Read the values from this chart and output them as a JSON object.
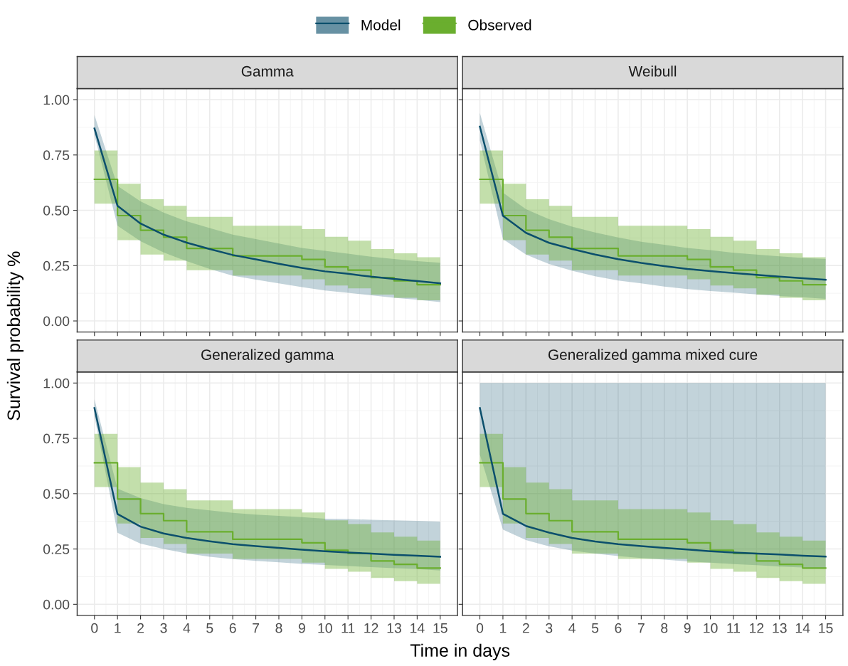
{
  "chart_data": [
    {
      "type": "line",
      "title": "Gamma",
      "ylabel": "Survival probability %",
      "legend": "top",
      "grid": true,
      "tick_labels": "y",
      "xlim": [
        -0.75,
        15.75
      ],
      "ylim": [
        -0.05,
        1.05
      ],
      "xticks": [
        0,
        1,
        2,
        3,
        4,
        5,
        6,
        7,
        8,
        9,
        10,
        11,
        12,
        13,
        14,
        15
      ],
      "yticks": [
        {
          "value": 0,
          "label": "0.00"
        },
        {
          "value": 0.25,
          "label": "0.25"
        },
        {
          "value": 0.5,
          "label": "0.50"
        },
        {
          "value": 0.75,
          "label": "0.75"
        },
        {
          "value": 1,
          "label": "1.00"
        }
      ],
      "x": [
        0,
        1,
        2,
        3,
        4,
        5,
        6,
        7,
        8,
        9,
        10,
        11,
        12,
        13,
        14,
        15
      ],
      "series": [
        {
          "name": "Model",
          "color": "#0b4f6c",
          "values": [
            0.87,
            0.52,
            0.44,
            0.39,
            0.354,
            0.325,
            0.298,
            0.278,
            0.258,
            0.24,
            0.224,
            0.213,
            0.2,
            0.19,
            0.18,
            0.17
          ],
          "lower": [
            0.84,
            0.43,
            0.36,
            0.31,
            0.27,
            0.235,
            0.204,
            0.187,
            0.17,
            0.153,
            0.138,
            0.127,
            0.116,
            0.105,
            0.096,
            0.085
          ],
          "upper": [
            0.93,
            0.61,
            0.54,
            0.49,
            0.45,
            0.42,
            0.39,
            0.37,
            0.35,
            0.33,
            0.317,
            0.304,
            0.29,
            0.28,
            0.27,
            0.263
          ]
        },
        {
          "name": "Observed",
          "type": "step",
          "color": "#6aae2e",
          "values": [
            0.64,
            0.476,
            0.41,
            0.378,
            0.328,
            0.328,
            0.294,
            0.294,
            0.294,
            0.278,
            0.244,
            0.23,
            0.196,
            0.181,
            0.164,
            0.164
          ],
          "lower": [
            0.53,
            0.365,
            0.3,
            0.273,
            0.229,
            0.229,
            0.205,
            0.205,
            0.205,
            0.188,
            0.16,
            0.147,
            0.119,
            0.105,
            0.093,
            0.093
          ],
          "upper": [
            0.77,
            0.62,
            0.55,
            0.52,
            0.47,
            0.47,
            0.43,
            0.43,
            0.43,
            0.415,
            0.38,
            0.363,
            0.325,
            0.306,
            0.288,
            0.288
          ]
        }
      ]
    },
    {
      "type": "line",
      "title": "Weibull",
      "grid": true,
      "tick_labels": false,
      "xlim": [
        -0.75,
        15.75
      ],
      "ylim": [
        -0.05,
        1.05
      ],
      "xticks": [
        0,
        1,
        2,
        3,
        4,
        5,
        6,
        7,
        8,
        9,
        10,
        11,
        12,
        13,
        14,
        15
      ],
      "yticks": [
        0,
        0.25,
        0.5,
        0.75,
        1
      ],
      "x": [
        0,
        1,
        2,
        3,
        4,
        5,
        6,
        7,
        8,
        9,
        10,
        11,
        12,
        13,
        14,
        15
      ],
      "series": [
        {
          "color": "#0b4f6c",
          "values": [
            0.878,
            0.475,
            0.398,
            0.353,
            0.325,
            0.3,
            0.279,
            0.262,
            0.248,
            0.235,
            0.225,
            0.216,
            0.208,
            0.2,
            0.193,
            0.186
          ],
          "lower": [
            0.815,
            0.37,
            0.3,
            0.257,
            0.227,
            0.202,
            0.183,
            0.17,
            0.155,
            0.144,
            0.135,
            0.128,
            0.12,
            0.113,
            0.107,
            0.1
          ],
          "upper": [
            0.94,
            0.58,
            0.505,
            0.46,
            0.426,
            0.4,
            0.377,
            0.358,
            0.344,
            0.33,
            0.32,
            0.308,
            0.3,
            0.292,
            0.285,
            0.28
          ]
        },
        {
          "type": "step",
          "color": "#6aae2e",
          "values": [
            0.64,
            0.476,
            0.41,
            0.378,
            0.328,
            0.328,
            0.294,
            0.294,
            0.294,
            0.278,
            0.244,
            0.23,
            0.196,
            0.181,
            0.164,
            0.164
          ],
          "lower": [
            0.53,
            0.365,
            0.3,
            0.273,
            0.229,
            0.229,
            0.205,
            0.205,
            0.205,
            0.188,
            0.16,
            0.147,
            0.119,
            0.105,
            0.093,
            0.093
          ],
          "upper": [
            0.77,
            0.62,
            0.55,
            0.52,
            0.47,
            0.47,
            0.43,
            0.43,
            0.43,
            0.415,
            0.38,
            0.363,
            0.325,
            0.306,
            0.288,
            0.288
          ]
        }
      ]
    },
    {
      "type": "line",
      "title": "Generalized gamma",
      "xlabel": "Time in days",
      "grid": true,
      "xlim": [
        -0.75,
        15.75
      ],
      "ylim": [
        -0.05,
        1.05
      ],
      "xticks": [
        0,
        1,
        2,
        3,
        4,
        5,
        6,
        7,
        8,
        9,
        10,
        11,
        12,
        13,
        14,
        15
      ],
      "yticks": [
        {
          "value": 0,
          "label": "0.00"
        },
        {
          "value": 0.25,
          "label": "0.25"
        },
        {
          "value": 0.5,
          "label": "0.50"
        },
        {
          "value": 0.75,
          "label": "0.75"
        },
        {
          "value": 1,
          "label": "1.00"
        }
      ],
      "x": [
        0,
        1,
        2,
        3,
        4,
        5,
        6,
        7,
        8,
        9,
        10,
        11,
        12,
        13,
        14,
        15
      ],
      "series": [
        {
          "color": "#0b4f6c",
          "values": [
            0.887,
            0.408,
            0.351,
            0.32,
            0.3,
            0.285,
            0.272,
            0.263,
            0.255,
            0.247,
            0.24,
            0.234,
            0.229,
            0.224,
            0.22,
            0.215
          ],
          "lower": [
            0.85,
            0.323,
            0.274,
            0.25,
            0.23,
            0.215,
            0.204,
            0.196,
            0.19,
            0.183,
            0.178,
            0.173,
            0.168,
            0.163,
            0.159,
            0.153
          ],
          "upper": [
            0.926,
            0.523,
            0.48,
            0.453,
            0.436,
            0.425,
            0.413,
            0.405,
            0.4,
            0.394,
            0.387,
            0.385,
            0.382,
            0.38,
            0.377,
            0.374
          ]
        },
        {
          "type": "step",
          "color": "#6aae2e",
          "values": [
            0.64,
            0.476,
            0.41,
            0.378,
            0.328,
            0.328,
            0.294,
            0.294,
            0.294,
            0.278,
            0.244,
            0.23,
            0.196,
            0.181,
            0.164,
            0.164
          ],
          "lower": [
            0.53,
            0.365,
            0.3,
            0.273,
            0.229,
            0.229,
            0.205,
            0.205,
            0.205,
            0.188,
            0.16,
            0.147,
            0.119,
            0.105,
            0.093,
            0.093
          ],
          "upper": [
            0.77,
            0.62,
            0.55,
            0.52,
            0.47,
            0.47,
            0.43,
            0.43,
            0.43,
            0.415,
            0.38,
            0.363,
            0.325,
            0.306,
            0.288,
            0.288
          ]
        }
      ]
    },
    {
      "type": "line",
      "title": "Generalized gamma mixed cure",
      "grid": true,
      "tick_labels": "x",
      "xlim": [
        -0.75,
        15.75
      ],
      "ylim": [
        -0.05,
        1.05
      ],
      "xticks": [
        0,
        1,
        2,
        3,
        4,
        5,
        6,
        7,
        8,
        9,
        10,
        11,
        12,
        13,
        14,
        15
      ],
      "yticks": [
        0,
        0.25,
        0.5,
        0.75,
        1
      ],
      "x": [
        0,
        1,
        2,
        3,
        4,
        5,
        6,
        7,
        8,
        9,
        10,
        11,
        12,
        13,
        14,
        15
      ],
      "series": [
        {
          "color": "#0b4f6c",
          "values": [
            0.887,
            0.409,
            0.354,
            0.324,
            0.3,
            0.284,
            0.272,
            0.263,
            0.255,
            0.248,
            0.24,
            0.234,
            0.229,
            0.225,
            0.22,
            0.216
          ],
          "lower": [
            0.676,
            0.338,
            0.29,
            0.262,
            0.243,
            0.229,
            0.218,
            0.209,
            0.202,
            0.194,
            0.188,
            0.182,
            0.177,
            0.171,
            0.167,
            0.162
          ],
          "upper": [
            1,
            1,
            1,
            1,
            1,
            1,
            1,
            1,
            1,
            1,
            1,
            1,
            1,
            1,
            1,
            1
          ]
        },
        {
          "type": "step",
          "color": "#6aae2e",
          "values": [
            0.64,
            0.476,
            0.41,
            0.378,
            0.328,
            0.328,
            0.294,
            0.294,
            0.294,
            0.278,
            0.244,
            0.23,
            0.196,
            0.181,
            0.164,
            0.164
          ],
          "lower": [
            0.53,
            0.365,
            0.3,
            0.273,
            0.229,
            0.229,
            0.205,
            0.205,
            0.205,
            0.188,
            0.16,
            0.147,
            0.119,
            0.105,
            0.093,
            0.093
          ],
          "upper": [
            0.77,
            0.62,
            0.55,
            0.52,
            0.47,
            0.47,
            0.43,
            0.43,
            0.43,
            0.415,
            0.38,
            0.363,
            0.325,
            0.306,
            0.288,
            0.288
          ]
        }
      ]
    }
  ]
}
